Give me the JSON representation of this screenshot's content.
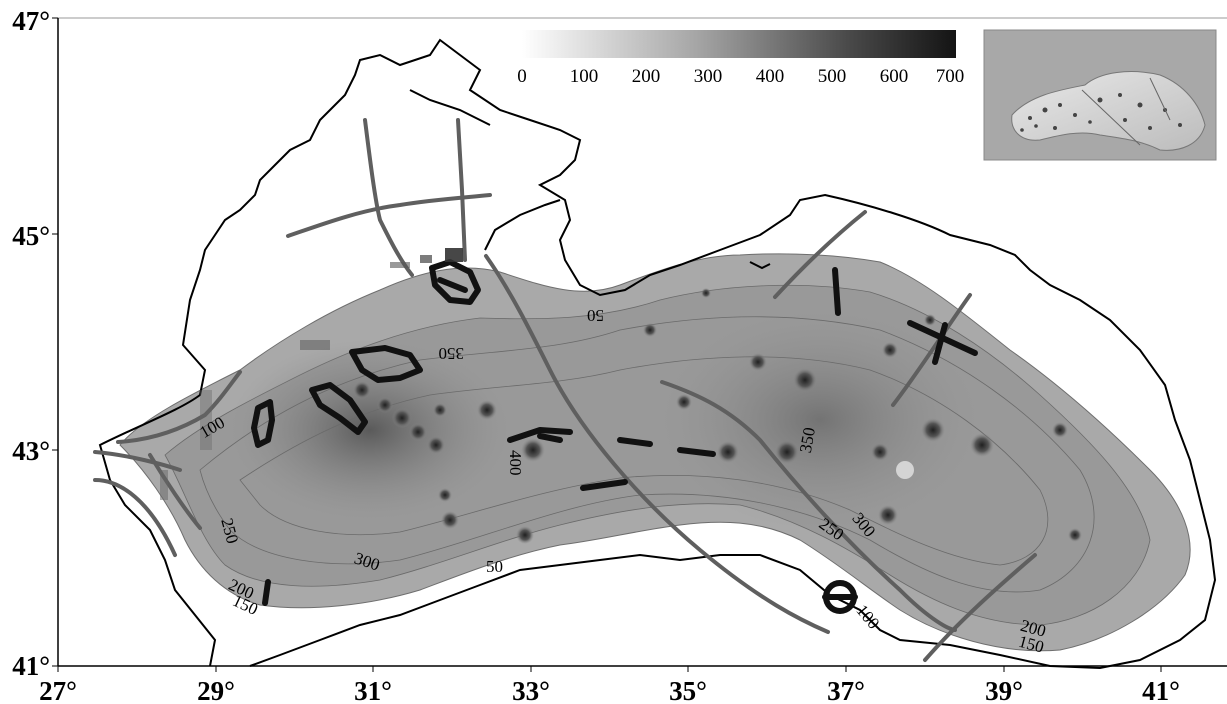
{
  "axes": {
    "x_ticks": [
      "27°",
      "29°",
      "31°",
      "33°",
      "35°",
      "37°",
      "39°",
      "41°"
    ],
    "y_ticks": [
      "47°",
      "45°",
      "43°",
      "41°"
    ]
  },
  "colorbar": {
    "labels": [
      "0",
      "100",
      "200",
      "300",
      "400",
      "500",
      "600",
      "700"
    ],
    "color_low": "#ffffff",
    "color_high": "#1a1a1a"
  },
  "contour_labels": [
    {
      "name": "contour-label-50-north",
      "text": "50"
    },
    {
      "name": "contour-label-350-west",
      "text": "350"
    },
    {
      "name": "contour-label-100-west",
      "text": "100"
    },
    {
      "name": "contour-label-400-central",
      "text": "400"
    },
    {
      "name": "contour-label-250-southwest",
      "text": "250"
    },
    {
      "name": "contour-label-300-southwest",
      "text": "300"
    },
    {
      "name": "contour-label-50-south",
      "text": "50"
    },
    {
      "name": "contour-label-200-southwest",
      "text": "200"
    },
    {
      "name": "contour-label-150-southwest",
      "text": "150"
    },
    {
      "name": "contour-label-350-east",
      "text": "350"
    },
    {
      "name": "contour-label-300-east",
      "text": "300"
    },
    {
      "name": "contour-label-250-east",
      "text": "250"
    },
    {
      "name": "contour-label-100-south",
      "text": "100"
    },
    {
      "name": "contour-label-200-southeast",
      "text": "200"
    },
    {
      "name": "contour-label-150-southeast",
      "text": "150"
    }
  ],
  "colors": {
    "coastline": "#000000",
    "fault_lines": "#5a5a5a",
    "highlight_features": "#111111",
    "inset_background": "#a8a8a8"
  }
}
